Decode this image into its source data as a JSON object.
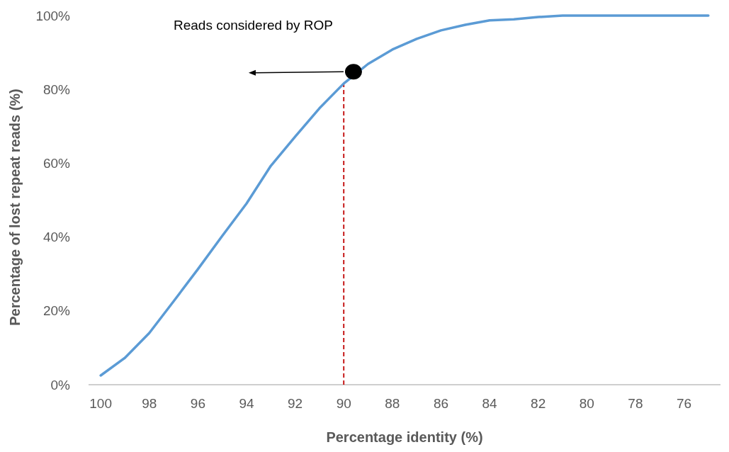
{
  "chart_data": {
    "type": "line",
    "xlabel": "Percentage identity (%)",
    "ylabel": "Percentage of lost repeat reads (%)",
    "xlim": [
      100.5,
      74.5
    ],
    "xticks": [
      100,
      98,
      96,
      94,
      92,
      90,
      88,
      86,
      84,
      82,
      80,
      78,
      76
    ],
    "ylim": [
      0,
      100
    ],
    "yticks": [
      {
        "value": 0,
        "label": "0%"
      },
      {
        "value": 20,
        "label": "20%"
      },
      {
        "value": 40,
        "label": "40%"
      },
      {
        "value": 60,
        "label": "60%"
      },
      {
        "value": 80,
        "label": "80%"
      },
      {
        "value": 100,
        "label": "100%"
      }
    ],
    "grid": false,
    "series": [
      {
        "color": "#5b9bd5",
        "marker": "none",
        "x": [
          100,
          99,
          98,
          97,
          96,
          95,
          94,
          93,
          92,
          91,
          90,
          89,
          88,
          87,
          86,
          85,
          84,
          83,
          82,
          81,
          80,
          79,
          78,
          77,
          76,
          75
        ],
        "values": [
          2.5,
          7.3,
          14,
          22.6,
          31.3,
          40.3,
          49.1,
          59.3,
          67.2,
          74.9,
          81.6,
          86.9,
          90.8,
          93.7,
          96,
          97.5,
          98.7,
          99,
          99.6,
          100,
          100,
          100,
          100,
          100,
          100,
          100
        ]
      },
      {
        "type": "scatter",
        "color": "#000000",
        "marker": "circle",
        "x": [
          89.6
        ],
        "values": [
          84.8
        ]
      }
    ],
    "ref_lines": [
      {
        "axis": "x",
        "value": 90,
        "color": "#c00000",
        "line_style": "dashed"
      }
    ],
    "annotations": [
      "Reads considered by ROP"
    ]
  }
}
